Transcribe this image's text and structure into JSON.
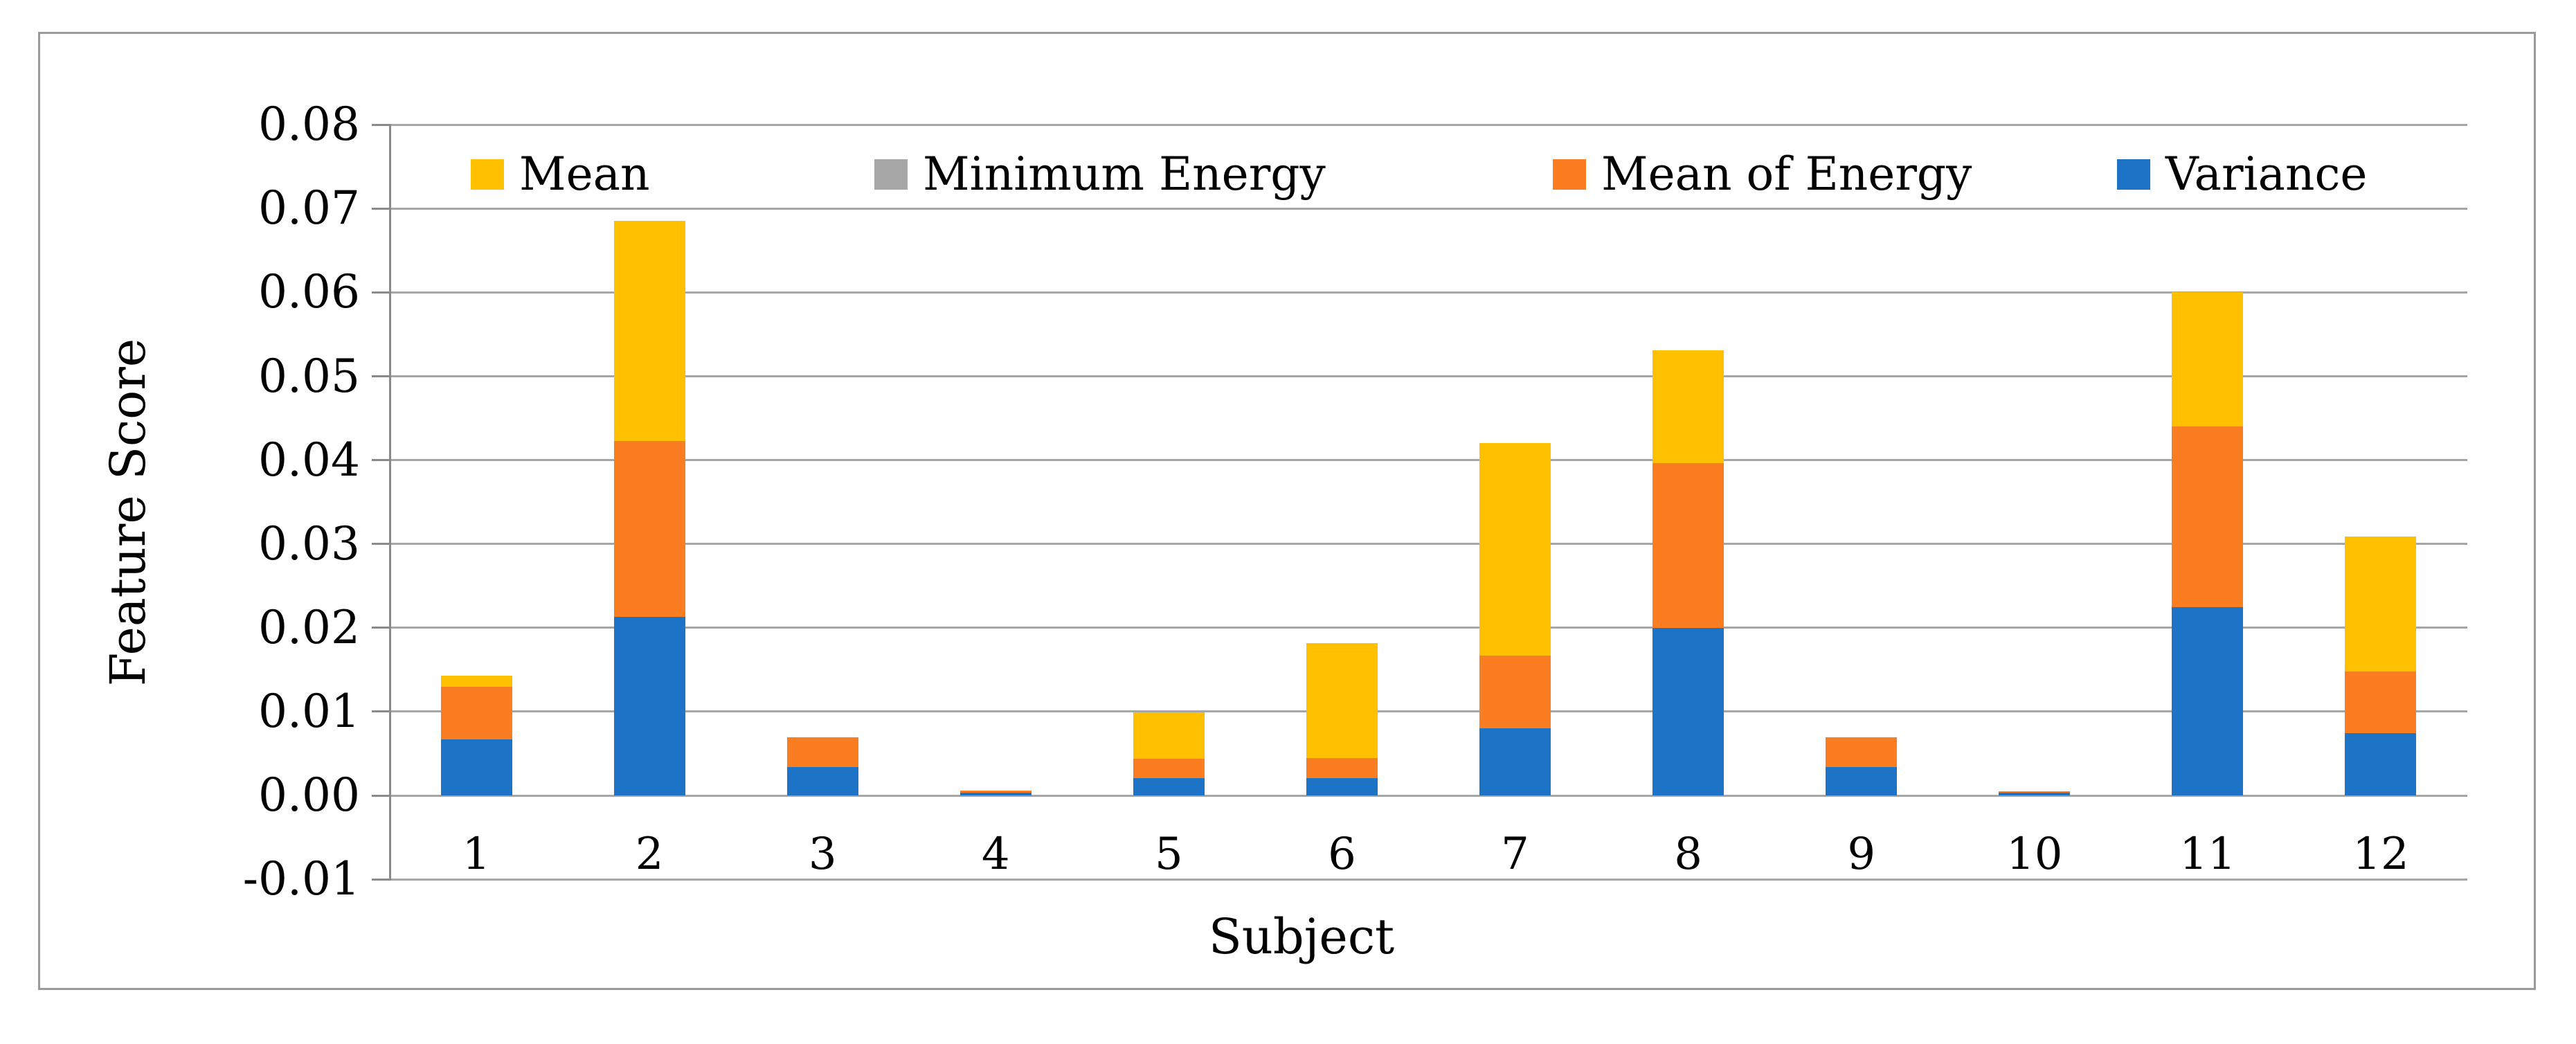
{
  "figure": {
    "kind": "stacked-bar-figure",
    "background": "#ffffff",
    "border_color": "#9a9a9a"
  },
  "colors": {
    "mean": "#FFC000",
    "minimum_energy": "#A6A6A6",
    "mean_of_energy": "#FB7D22",
    "variance": "#1D73C6",
    "gridline": "#A6A6A6",
    "axis": "#8A8A8A",
    "text": "#000000"
  },
  "chart_data": {
    "type": "bar",
    "stacked": true,
    "title": "",
    "xlabel": "Subject",
    "ylabel": "Feature Score",
    "ylim": [
      -0.01,
      0.08
    ],
    "ytick_step": 0.01,
    "yticks": [
      "0.08",
      "0.07",
      "0.06",
      "0.05",
      "0.04",
      "0.03",
      "0.02",
      "0.01",
      "0.00",
      "-0.01"
    ],
    "gridlines": true,
    "legend_position": "top-inside",
    "categories": [
      "1",
      "2",
      "3",
      "4",
      "5",
      "6",
      "7",
      "8",
      "9",
      "10",
      "11",
      "12"
    ],
    "series": [
      {
        "name": "Mean",
        "color": "#FFC000",
        "values": [
          0.0013,
          0.0262,
          0.0,
          0.0,
          0.0055,
          0.0137,
          0.0253,
          0.0135,
          0.0,
          0.0,
          0.016,
          0.0161
        ]
      },
      {
        "name": "Minimum Energy",
        "color": "#A6A6A6",
        "values": [
          0.0,
          0.0,
          0.0,
          0.0,
          0.0,
          0.0,
          0.0,
          0.0,
          0.0,
          0.0,
          0.0,
          0.0
        ]
      },
      {
        "name": "Mean of Energy",
        "color": "#FB7D22",
        "values": [
          0.0063,
          0.021,
          0.0035,
          0.0003,
          0.0023,
          0.0024,
          0.0087,
          0.0196,
          0.0035,
          0.0002,
          0.0215,
          0.0074
        ]
      },
      {
        "name": "Variance",
        "color": "#1D73C6",
        "values": [
          0.0067,
          0.0213,
          0.0034,
          0.0003,
          0.0021,
          0.0021,
          0.008,
          0.02,
          0.0034,
          0.0003,
          0.0225,
          0.0074
        ]
      }
    ],
    "stack_order": [
      "Variance",
      "Minimum Energy",
      "Mean of Energy",
      "Mean"
    ],
    "totals": [
      0.0143,
      0.0685,
      0.0069,
      0.0006,
      0.0099,
      0.0182,
      0.042,
      0.0531,
      0.0069,
      0.0005,
      0.06,
      0.0309
    ]
  }
}
